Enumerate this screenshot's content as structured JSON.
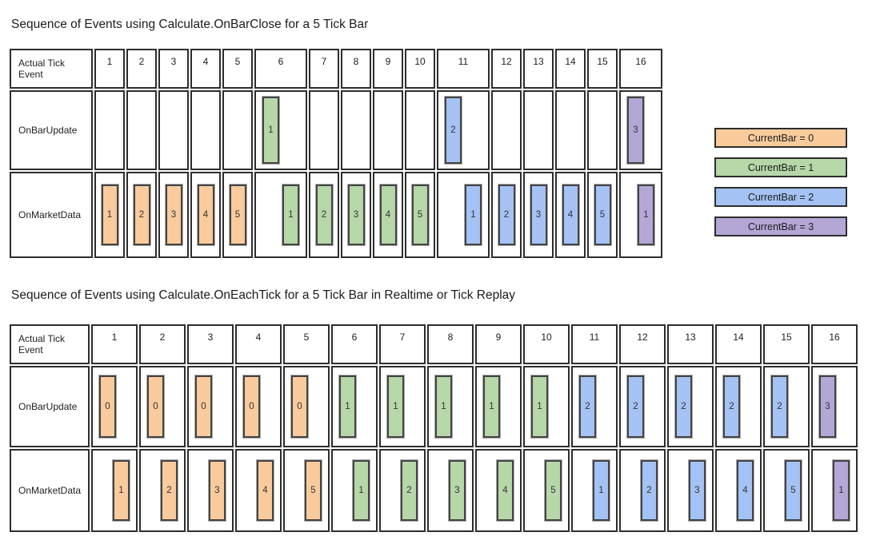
{
  "palette": {
    "orange": "#F9CB9C",
    "green": "#B6D7A8",
    "blue": "#A4C2F4",
    "purple": "#B4A7D6",
    "bar_border": "#434343",
    "grid_line": "#2d2d2d",
    "text": "#212121"
  },
  "diagram_onbarclose": {
    "title": "Sequence of Events using Calculate.OnBarClose for a 5 Tick Bar",
    "corner_label": "Actual Tick Event",
    "ticks": [
      "1",
      "2",
      "3",
      "4",
      "5",
      "6",
      "7",
      "8",
      "9",
      "10",
      "11",
      "12",
      "13",
      "14",
      "15",
      "16"
    ],
    "rows": [
      {
        "label": "OnBarUpdate",
        "bars": [
          {
            "tick": 6,
            "value": "1",
            "color": "green"
          },
          {
            "tick": 11,
            "value": "2",
            "color": "blue"
          },
          {
            "tick": 16,
            "value": "3",
            "color": "purple"
          }
        ]
      },
      {
        "label": "OnMarketData",
        "bars": [
          {
            "tick": 1,
            "value": "1",
            "color": "orange"
          },
          {
            "tick": 2,
            "value": "2",
            "color": "orange"
          },
          {
            "tick": 3,
            "value": "3",
            "color": "orange"
          },
          {
            "tick": 4,
            "value": "4",
            "color": "orange"
          },
          {
            "tick": 5,
            "value": "5",
            "color": "orange"
          },
          {
            "tick": 6,
            "value": "1",
            "color": "green"
          },
          {
            "tick": 7,
            "value": "2",
            "color": "green"
          },
          {
            "tick": 8,
            "value": "3",
            "color": "green"
          },
          {
            "tick": 9,
            "value": "4",
            "color": "green"
          },
          {
            "tick": 10,
            "value": "5",
            "color": "green"
          },
          {
            "tick": 11,
            "value": "1",
            "color": "blue"
          },
          {
            "tick": 12,
            "value": "2",
            "color": "blue"
          },
          {
            "tick": 13,
            "value": "3",
            "color": "blue"
          },
          {
            "tick": 14,
            "value": "4",
            "color": "blue"
          },
          {
            "tick": 15,
            "value": "5",
            "color": "blue"
          },
          {
            "tick": 16,
            "value": "1",
            "color": "purple"
          }
        ]
      }
    ]
  },
  "legend": {
    "items": [
      {
        "label": "CurrentBar = 0",
        "color": "orange"
      },
      {
        "label": "CurrentBar = 1",
        "color": "green"
      },
      {
        "label": "CurrentBar = 2",
        "color": "blue"
      },
      {
        "label": "CurrentBar = 3",
        "color": "purple"
      }
    ]
  },
  "diagram_oneachtick": {
    "title": "Sequence of Events using Calculate.OnEachTick for a 5 Tick Bar in Realtime or Tick Replay",
    "corner_label": "Actual Tick Event",
    "ticks": [
      "1",
      "2",
      "3",
      "4",
      "5",
      "6",
      "7",
      "8",
      "9",
      "10",
      "11",
      "12",
      "13",
      "14",
      "15",
      "16"
    ],
    "rows": [
      {
        "label": "OnBarUpdate",
        "bars": [
          {
            "tick": 1,
            "value": "0",
            "color": "orange"
          },
          {
            "tick": 2,
            "value": "0",
            "color": "orange"
          },
          {
            "tick": 3,
            "value": "0",
            "color": "orange"
          },
          {
            "tick": 4,
            "value": "0",
            "color": "orange"
          },
          {
            "tick": 5,
            "value": "0",
            "color": "orange"
          },
          {
            "tick": 6,
            "value": "1",
            "color": "green"
          },
          {
            "tick": 7,
            "value": "1",
            "color": "green"
          },
          {
            "tick": 8,
            "value": "1",
            "color": "green"
          },
          {
            "tick": 9,
            "value": "1",
            "color": "green"
          },
          {
            "tick": 10,
            "value": "1",
            "color": "green"
          },
          {
            "tick": 11,
            "value": "2",
            "color": "blue"
          },
          {
            "tick": 12,
            "value": "2",
            "color": "blue"
          },
          {
            "tick": 13,
            "value": "2",
            "color": "blue"
          },
          {
            "tick": 14,
            "value": "2",
            "color": "blue"
          },
          {
            "tick": 15,
            "value": "2",
            "color": "blue"
          },
          {
            "tick": 16,
            "value": "3",
            "color": "purple"
          }
        ]
      },
      {
        "label": "OnMarketData",
        "bars": [
          {
            "tick": 1,
            "value": "1",
            "color": "orange"
          },
          {
            "tick": 2,
            "value": "2",
            "color": "orange"
          },
          {
            "tick": 3,
            "value": "3",
            "color": "orange"
          },
          {
            "tick": 4,
            "value": "4",
            "color": "orange"
          },
          {
            "tick": 5,
            "value": "5",
            "color": "orange"
          },
          {
            "tick": 6,
            "value": "1",
            "color": "green"
          },
          {
            "tick": 7,
            "value": "2",
            "color": "green"
          },
          {
            "tick": 8,
            "value": "3",
            "color": "green"
          },
          {
            "tick": 9,
            "value": "4",
            "color": "green"
          },
          {
            "tick": 10,
            "value": "5",
            "color": "green"
          },
          {
            "tick": 11,
            "value": "1",
            "color": "blue"
          },
          {
            "tick": 12,
            "value": "2",
            "color": "blue"
          },
          {
            "tick": 13,
            "value": "3",
            "color": "blue"
          },
          {
            "tick": 14,
            "value": "4",
            "color": "blue"
          },
          {
            "tick": 15,
            "value": "5",
            "color": "blue"
          },
          {
            "tick": 16,
            "value": "1",
            "color": "purple"
          }
        ]
      }
    ]
  }
}
